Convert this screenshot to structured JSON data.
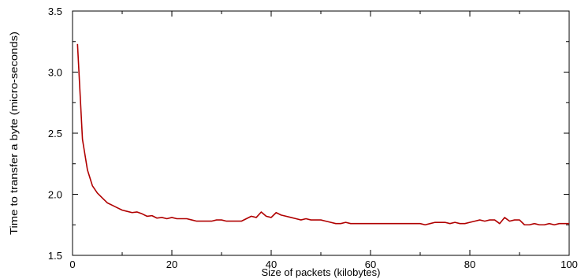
{
  "chart_data": {
    "type": "line",
    "title": "",
    "xlabel": "Size of packets (kilobytes)",
    "ylabel": "Time to transfer a byte (micro-seconds)",
    "xlim": [
      0,
      100
    ],
    "ylim": [
      1.5,
      3.5
    ],
    "xticks": [
      0,
      20,
      40,
      60,
      80,
      100
    ],
    "yticks": [
      1.5,
      2.0,
      2.5,
      3.0,
      3.5
    ],
    "xtick_labels": [
      "0",
      "20",
      "40",
      "60",
      "80",
      "100"
    ],
    "ytick_labels": [
      "1.5",
      "2.0",
      "2.5",
      "3.0",
      "3.5"
    ],
    "grid": false,
    "legend": "none",
    "series": [
      {
        "color": "#b00000",
        "x": [
          1,
          2,
          3,
          4,
          5,
          6,
          7,
          8,
          9,
          10,
          11,
          12,
          13,
          14,
          15,
          16,
          17,
          18,
          19,
          20,
          21,
          22,
          23,
          24,
          25,
          26,
          27,
          28,
          29,
          30,
          31,
          32,
          33,
          34,
          35,
          36,
          37,
          38,
          39,
          40,
          41,
          42,
          43,
          44,
          45,
          46,
          47,
          48,
          49,
          50,
          51,
          52,
          53,
          54,
          55,
          56,
          57,
          58,
          59,
          60,
          61,
          62,
          63,
          64,
          65,
          66,
          67,
          68,
          69,
          70,
          71,
          72,
          73,
          74,
          75,
          76,
          77,
          78,
          79,
          80,
          81,
          82,
          83,
          84,
          85,
          86,
          87,
          88,
          89,
          90,
          91,
          92,
          93,
          94,
          95,
          96,
          97,
          98,
          99,
          100
        ],
        "y": [
          3.23,
          2.45,
          2.2,
          2.07,
          2.01,
          1.97,
          1.93,
          1.91,
          1.89,
          1.87,
          1.86,
          1.85,
          1.855,
          1.84,
          1.82,
          1.825,
          1.805,
          1.81,
          1.8,
          1.81,
          1.8,
          1.8,
          1.8,
          1.79,
          1.78,
          1.78,
          1.78,
          1.78,
          1.79,
          1.79,
          1.78,
          1.78,
          1.78,
          1.78,
          1.8,
          1.82,
          1.81,
          1.855,
          1.82,
          1.81,
          1.85,
          1.83,
          1.82,
          1.81,
          1.8,
          1.79,
          1.8,
          1.79,
          1.79,
          1.79,
          1.78,
          1.77,
          1.76,
          1.76,
          1.77,
          1.76,
          1.76,
          1.76,
          1.76,
          1.76,
          1.76,
          1.76,
          1.76,
          1.76,
          1.76,
          1.76,
          1.76,
          1.76,
          1.76,
          1.76,
          1.75,
          1.76,
          1.77,
          1.77,
          1.77,
          1.76,
          1.77,
          1.76,
          1.76,
          1.77,
          1.78,
          1.79,
          1.78,
          1.79,
          1.79,
          1.76,
          1.81,
          1.78,
          1.79,
          1.79,
          1.75,
          1.75,
          1.76,
          1.75,
          1.75,
          1.76,
          1.75,
          1.76,
          1.76,
          1.76
        ]
      }
    ]
  }
}
